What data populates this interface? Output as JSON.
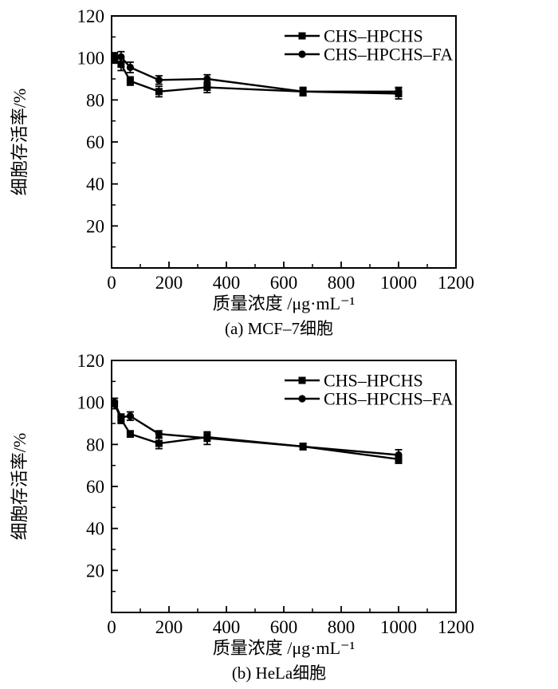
{
  "figure": {
    "background_color": "#ffffff",
    "ink_color": "#000000"
  },
  "chart_data": [
    {
      "id": "chart-a",
      "type": "line",
      "caption": "(a) MCF–7细胞",
      "xlabel": "质量浓度 /μg·mL⁻¹",
      "ylabel": "细胞存活率/%",
      "xlim": [
        0,
        1200
      ],
      "ylim": [
        0,
        120
      ],
      "xticks": [
        0,
        200,
        400,
        600,
        800,
        1000,
        1200
      ],
      "yticks": [
        20,
        40,
        60,
        80,
        100,
        120
      ],
      "grid": false,
      "legend_position": "top-right",
      "x": [
        10,
        33,
        65,
        165,
        333,
        667,
        1000
      ],
      "series": [
        {
          "name": "CHS–HPCHS",
          "marker": "square",
          "values": [
            100,
            97,
            89,
            84,
            86,
            84,
            83
          ],
          "errors": [
            2.5,
            3,
            2,
            2.5,
            2.5,
            2,
            2.5
          ]
        },
        {
          "name": "CHS–HPCHS–FA",
          "marker": "circle",
          "values": [
            100,
            100.5,
            95.5,
            89.5,
            90,
            84,
            84
          ],
          "errors": [
            2,
            2.5,
            2.5,
            2,
            2,
            1.5,
            2
          ]
        }
      ],
      "colors": {
        "stroke": "#000000",
        "background": "#ffffff"
      }
    },
    {
      "id": "chart-b",
      "type": "line",
      "caption": "(b) HeLa细胞",
      "xlabel": "质量浓度 /μg·mL⁻¹",
      "ylabel": "细胞存活率/%",
      "xlim": [
        0,
        1200
      ],
      "ylim": [
        0,
        120
      ],
      "xticks": [
        0,
        200,
        400,
        600,
        800,
        1000,
        1200
      ],
      "yticks": [
        20,
        40,
        60,
        80,
        100,
        120
      ],
      "grid": false,
      "legend_position": "top-right",
      "x": [
        10,
        33,
        65,
        165,
        333,
        667,
        1000
      ],
      "series": [
        {
          "name": "CHS–HPCHS",
          "marker": "square",
          "values": [
            99.5,
            92,
            85,
            80.5,
            83.5,
            79,
            73
          ],
          "errors": [
            2.5,
            2,
            1.5,
            2.5,
            2,
            1.5,
            2
          ]
        },
        {
          "name": "CHS–HPCHS–FA",
          "marker": "circle",
          "values": [
            100,
            93,
            93.5,
            85,
            83,
            79,
            75
          ],
          "errors": [
            2,
            1.5,
            2,
            1.5,
            3,
            1.5,
            2.5
          ]
        }
      ],
      "colors": {
        "stroke": "#000000",
        "background": "#ffffff"
      }
    }
  ]
}
